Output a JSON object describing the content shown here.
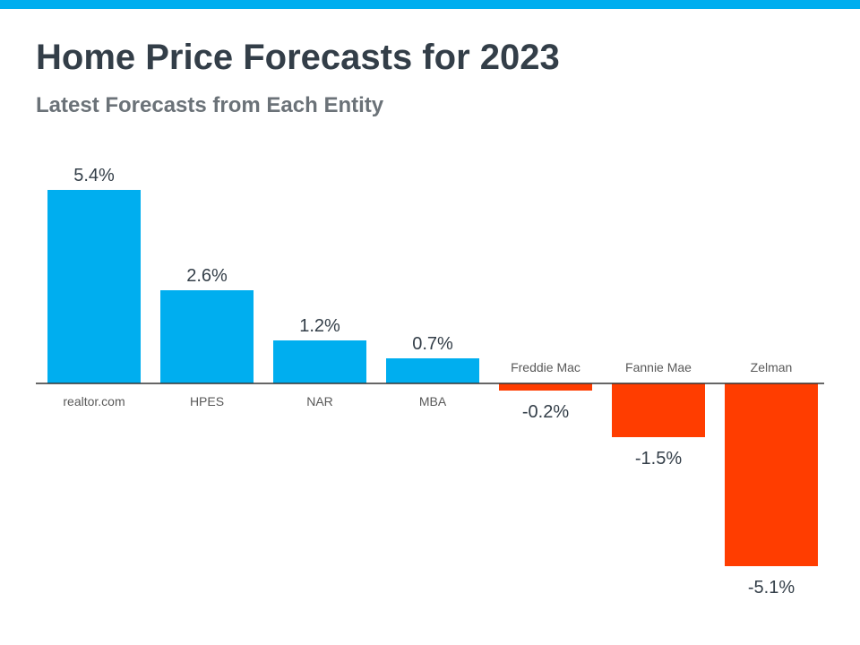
{
  "header": {
    "title": "Home Price Forecasts for 2023",
    "subtitle": "Latest Forecasts from Each Entity"
  },
  "colors": {
    "accent_bar": "#00aeef",
    "positive": "#00aeef",
    "negative": "#ff3d00",
    "title": "#333e48",
    "subtitle": "#6b7278"
  },
  "chart_data": {
    "type": "bar",
    "title": "Home Price Forecasts for 2023",
    "subtitle": "Latest Forecasts from Each Entity",
    "xlabel": "",
    "ylabel": "",
    "categories": [
      "realtor.com",
      "HPES",
      "NAR",
      "MBA",
      "Freddie Mac",
      "Fannie Mae",
      "Zelman"
    ],
    "values": [
      5.4,
      2.6,
      1.2,
      0.7,
      -0.2,
      -1.5,
      -5.1
    ],
    "value_labels": [
      "5.4%",
      "2.6%",
      "1.2%",
      "0.7%",
      "-0.2%",
      "-1.5%",
      "-5.1%"
    ],
    "ylim": [
      -5.1,
      5.4
    ],
    "grid": false,
    "legend": "none"
  }
}
